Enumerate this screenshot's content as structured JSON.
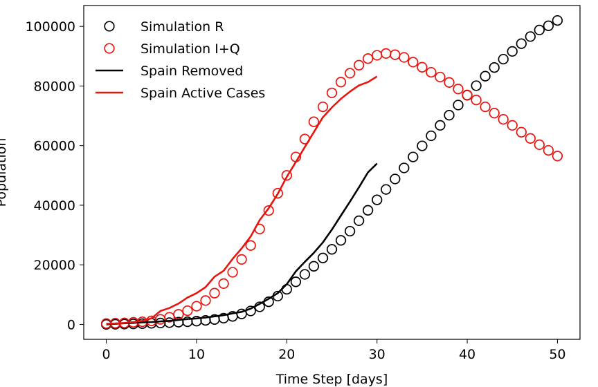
{
  "chart_data": {
    "type": "line",
    "title": "",
    "xlabel": "Time Step [days]",
    "ylabel": "Population",
    "xlim": [
      -2.5,
      52.5
    ],
    "ylim": [
      -5000,
      107000
    ],
    "xticks": [
      0,
      10,
      20,
      30,
      40,
      50
    ],
    "yticks": [
      0,
      20000,
      40000,
      60000,
      80000,
      100000
    ],
    "grid": false,
    "legend_position": "top-left",
    "series": [
      {
        "name": "Simulation R",
        "kind": "markers",
        "color": "#000000",
        "x": [
          0,
          1,
          2,
          3,
          4,
          5,
          6,
          7,
          8,
          9,
          10,
          11,
          12,
          13,
          14,
          15,
          16,
          17,
          18,
          19,
          20,
          21,
          22,
          23,
          24,
          25,
          26,
          27,
          28,
          29,
          30,
          31,
          32,
          33,
          34,
          35,
          36,
          37,
          38,
          39,
          40,
          41,
          42,
          43,
          44,
          45,
          46,
          47,
          48,
          49,
          50
        ],
        "values": [
          0,
          50,
          100,
          180,
          270,
          370,
          480,
          600,
          750,
          900,
          1100,
          1350,
          1650,
          2100,
          2700,
          3500,
          4500,
          5900,
          7600,
          9500,
          11800,
          14300,
          16800,
          19500,
          22300,
          25200,
          28200,
          31300,
          34800,
          38300,
          41800,
          45300,
          48800,
          52500,
          56200,
          59900,
          63300,
          66800,
          70200,
          73600,
          76900,
          80100,
          83300,
          86200,
          89000,
          91600,
          94200,
          96600,
          98800,
          100200,
          102000
        ]
      },
      {
        "name": "Simulation I+Q",
        "kind": "markers",
        "color": "#e8140e",
        "x": [
          0,
          1,
          2,
          3,
          4,
          5,
          6,
          7,
          8,
          9,
          10,
          11,
          12,
          13,
          14,
          15,
          16,
          17,
          18,
          19,
          20,
          21,
          22,
          23,
          24,
          25,
          26,
          27,
          28,
          29,
          30,
          31,
          32,
          33,
          34,
          35,
          36,
          37,
          38,
          39,
          40,
          41,
          42,
          43,
          44,
          45,
          46,
          47,
          48,
          49,
          50
        ],
        "values": [
          300,
          400,
          500,
          700,
          900,
          1200,
          1700,
          2400,
          3400,
          4600,
          6100,
          8000,
          10500,
          13700,
          17500,
          21800,
          26500,
          32000,
          38200,
          44000,
          50000,
          56200,
          62200,
          68000,
          73000,
          77700,
          81300,
          84300,
          87000,
          89200,
          90300,
          90900,
          90500,
          89600,
          88000,
          86300,
          84600,
          83000,
          81200,
          79000,
          77000,
          75300,
          73000,
          70900,
          68800,
          66800,
          64500,
          62400,
          60300,
          58400,
          56500
        ]
      },
      {
        "name": "Spain Removed",
        "kind": "line",
        "color": "#000000",
        "x": [
          0,
          1,
          2,
          3,
          4,
          5,
          6,
          7,
          8,
          9,
          10,
          11,
          12,
          13,
          14,
          15,
          16,
          17,
          18,
          19,
          20,
          21,
          22,
          23,
          24,
          25,
          26,
          27,
          28,
          29,
          30
        ],
        "values": [
          0,
          200,
          400,
          500,
          700,
          800,
          1000,
          1200,
          1500,
          1800,
          2000,
          2300,
          2700,
          3100,
          3700,
          4200,
          5300,
          6900,
          8600,
          10500,
          13500,
          17800,
          21000,
          24000,
          27500,
          31800,
          36500,
          41200,
          46000,
          51000,
          54000
        ]
      },
      {
        "name": "Spain Active Cases",
        "kind": "line",
        "color": "#e8140e",
        "x": [
          0,
          1,
          2,
          3,
          4,
          5,
          6,
          7,
          8,
          9,
          10,
          11,
          12,
          13,
          14,
          15,
          16,
          17,
          18,
          19,
          20,
          21,
          22,
          23,
          24,
          25,
          26,
          27,
          28,
          29,
          30
        ],
        "values": [
          200,
          300,
          500,
          800,
          1200,
          2000,
          4500,
          5500,
          7000,
          9000,
          10500,
          12500,
          16000,
          18000,
          22000,
          25500,
          29500,
          35000,
          39000,
          43800,
          49500,
          54500,
          59500,
          64500,
          69500,
          72800,
          75700,
          78100,
          80200,
          81300,
          83200
        ]
      }
    ]
  }
}
